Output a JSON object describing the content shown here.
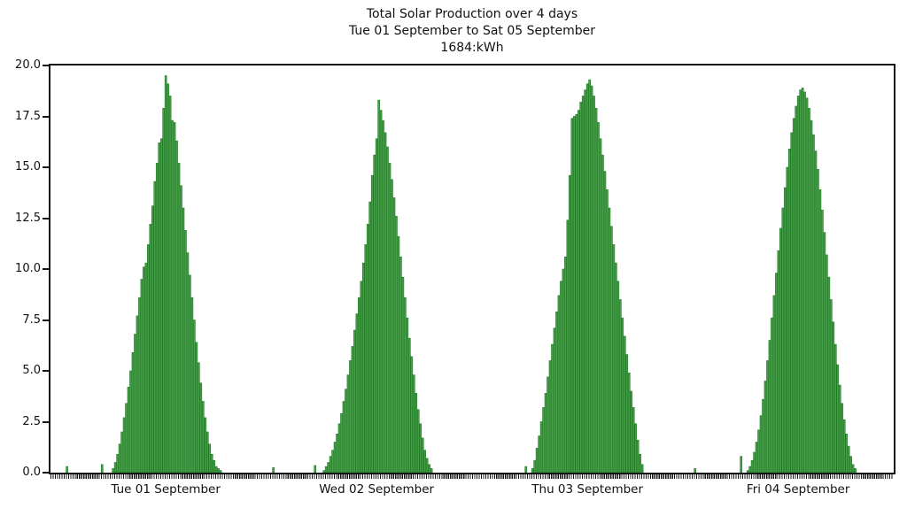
{
  "figure": {
    "title_lines": [
      "Total Solar Production over 4 days",
      "Tue 01 September to Sat 05 September",
      "1684:kWh"
    ]
  },
  "chart_data": {
    "type": "bar",
    "title": "Total Solar Production over 4 days",
    "subtitle": "Tue 01 September to Sat 05 September",
    "total_label": "1684:kWh",
    "xlabel": "",
    "ylabel": "",
    "ylim": [
      0,
      20
    ],
    "yticks": [
      "0.0",
      "2.5",
      "5.0",
      "7.5",
      "10.0",
      "12.5",
      "15.0",
      "17.5",
      "20.0"
    ],
    "grid": false,
    "legend": false,
    "bar_color": "#48a04a",
    "bar_edge_color": "#1e7a22",
    "axis_color": "#151515",
    "interval_minutes": 15,
    "slots_per_day": 96,
    "label_center_slot": 52.5,
    "days": [
      {
        "label": "Tue 01 September",
        "start_slot": 28,
        "peak": 19.5,
        "values": [
          0.2,
          0.5,
          0.9,
          1.4,
          2.0,
          2.7,
          3.4,
          4.2,
          5.0,
          5.9,
          6.8,
          7.7,
          8.6,
          9.5,
          10.1,
          10.3,
          11.2,
          12.2,
          13.1,
          14.3,
          15.2,
          16.2,
          16.4,
          17.9,
          19.5,
          19.1,
          18.5,
          17.3,
          17.2,
          16.3,
          15.2,
          14.1,
          13.0,
          11.9,
          10.8,
          9.7,
          8.6,
          7.5,
          6.4,
          5.4,
          4.4,
          3.5,
          2.7,
          2.0,
          1.4,
          0.9,
          0.6,
          0.3,
          0.2,
          0.1
        ]
      },
      {
        "label": "Wed 02 September",
        "start_slot": 28,
        "peak": 18.3,
        "values": [
          0.1,
          0.3,
          0.5,
          0.8,
          1.1,
          1.5,
          1.9,
          2.4,
          2.9,
          3.5,
          4.1,
          4.8,
          5.5,
          6.2,
          7.0,
          7.8,
          8.6,
          9.4,
          10.3,
          11.2,
          12.2,
          13.3,
          14.6,
          15.6,
          16.4,
          18.3,
          17.8,
          17.3,
          16.7,
          16.0,
          15.2,
          14.4,
          13.5,
          12.6,
          11.6,
          10.6,
          9.6,
          8.6,
          7.6,
          6.6,
          5.7,
          4.8,
          3.9,
          3.1,
          2.4,
          1.7,
          1.1,
          0.7,
          0.4,
          0.2
        ]
      },
      {
        "label": "Thu 03 September",
        "start_slot": 27,
        "peak": 19.3,
        "values": [
          0.2,
          0.6,
          1.2,
          1.8,
          2.5,
          3.2,
          3.9,
          4.7,
          5.5,
          6.3,
          7.1,
          7.9,
          8.7,
          9.4,
          10.0,
          10.6,
          12.4,
          14.6,
          17.4,
          17.5,
          17.6,
          17.8,
          18.2,
          18.5,
          18.8,
          19.1,
          19.3,
          19.0,
          18.5,
          17.9,
          17.2,
          16.4,
          15.6,
          14.8,
          13.9,
          13.0,
          12.1,
          11.2,
          10.3,
          9.4,
          8.5,
          7.6,
          6.7,
          5.8,
          4.9,
          4.0,
          3.2,
          2.4,
          1.6,
          0.9,
          0.4
        ]
      },
      {
        "label": "Fri 04 September",
        "start_slot": 29,
        "peak": 18.9,
        "values": [
          0.1,
          0.3,
          0.6,
          1.0,
          1.5,
          2.1,
          2.8,
          3.6,
          4.5,
          5.5,
          6.5,
          7.6,
          8.7,
          9.8,
          10.9,
          12.0,
          13.0,
          14.0,
          15.0,
          15.9,
          16.7,
          17.4,
          18.0,
          18.5,
          18.8,
          18.9,
          18.7,
          18.4,
          17.9,
          17.3,
          16.6,
          15.8,
          14.9,
          13.9,
          12.9,
          11.8,
          10.7,
          9.6,
          8.5,
          7.4,
          6.3,
          5.3,
          4.3,
          3.4,
          2.6,
          1.9,
          1.3,
          0.8,
          0.4,
          0.2
        ]
      }
    ],
    "stray_bars": [
      {
        "day": 0,
        "slot": 7,
        "value": 0.3
      },
      {
        "day": 0,
        "slot": 23,
        "value": 0.4
      },
      {
        "day": 1,
        "slot": 5,
        "value": 0.25
      },
      {
        "day": 1,
        "slot": 24,
        "value": 0.35
      },
      {
        "day": 2,
        "slot": 24,
        "value": 0.3
      },
      {
        "day": 3,
        "slot": 5,
        "value": 0.2
      },
      {
        "day": 3,
        "slot": 26,
        "value": 0.8
      }
    ]
  }
}
